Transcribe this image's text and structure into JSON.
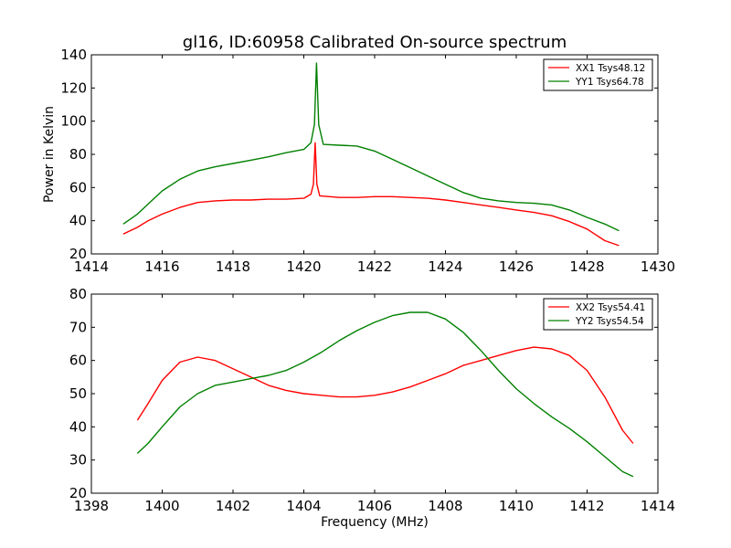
{
  "chart_data": [
    {
      "type": "line",
      "title": "gl16, ID:60958 Calibrated On-source spectrum",
      "xlabel": "",
      "ylabel": "Power in Kelvin",
      "xlim": [
        1414,
        1430
      ],
      "ylim": [
        20,
        140
      ],
      "xticks": [
        1414,
        1416,
        1418,
        1420,
        1422,
        1424,
        1426,
        1428,
        1430
      ],
      "yticks": [
        20,
        40,
        60,
        80,
        100,
        120,
        140
      ],
      "legend": "top-right",
      "grid": false,
      "series": [
        {
          "name": "XX1 Tsys48.12",
          "color": "#ff0000",
          "points": [
            [
              1414.9,
              32
            ],
            [
              1415.3,
              36
            ],
            [
              1415.6,
              40
            ],
            [
              1416.0,
              44
            ],
            [
              1416.5,
              48
            ],
            [
              1417.0,
              51
            ],
            [
              1417.5,
              52
            ],
            [
              1418.0,
              52.5
            ],
            [
              1418.5,
              52.5
            ],
            [
              1419.0,
              53
            ],
            [
              1419.5,
              53
            ],
            [
              1420.0,
              53.5
            ],
            [
              1420.2,
              56
            ],
            [
              1420.27,
              62
            ],
            [
              1420.32,
              87
            ],
            [
              1420.37,
              62
            ],
            [
              1420.45,
              55
            ],
            [
              1421.0,
              54
            ],
            [
              1421.5,
              54
            ],
            [
              1422.0,
              54.5
            ],
            [
              1422.5,
              54.5
            ],
            [
              1423.0,
              54
            ],
            [
              1423.5,
              53.5
            ],
            [
              1424.0,
              52.5
            ],
            [
              1424.5,
              51
            ],
            [
              1425.0,
              49.5
            ],
            [
              1425.5,
              48
            ],
            [
              1426.0,
              46.5
            ],
            [
              1426.5,
              45
            ],
            [
              1427.0,
              43
            ],
            [
              1427.5,
              39.5
            ],
            [
              1428.0,
              35
            ],
            [
              1428.5,
              28
            ],
            [
              1428.9,
              25
            ]
          ]
        },
        {
          "name": "YY1 Tsys64.78",
          "color": "#008000",
          "points": [
            [
              1414.9,
              38
            ],
            [
              1415.3,
              44
            ],
            [
              1415.6,
              50
            ],
            [
              1416.0,
              58
            ],
            [
              1416.5,
              65
            ],
            [
              1417.0,
              70
            ],
            [
              1417.5,
              72.5
            ],
            [
              1418.0,
              74.5
            ],
            [
              1418.5,
              76.5
            ],
            [
              1419.0,
              78.5
            ],
            [
              1419.5,
              81
            ],
            [
              1420.0,
              83
            ],
            [
              1420.2,
              87
            ],
            [
              1420.3,
              98
            ],
            [
              1420.36,
              135
            ],
            [
              1420.42,
              98
            ],
            [
              1420.55,
              86
            ],
            [
              1421.0,
              85.5
            ],
            [
              1421.5,
              85
            ],
            [
              1422.0,
              82
            ],
            [
              1422.5,
              77
            ],
            [
              1423.0,
              72
            ],
            [
              1423.5,
              67
            ],
            [
              1424.0,
              62
            ],
            [
              1424.5,
              57
            ],
            [
              1425.0,
              53.5
            ],
            [
              1425.5,
              52
            ],
            [
              1426.0,
              51
            ],
            [
              1426.5,
              50.5
            ],
            [
              1427.0,
              49.5
            ],
            [
              1427.5,
              46.5
            ],
            [
              1428.0,
              42
            ],
            [
              1428.5,
              38
            ],
            [
              1428.9,
              34
            ]
          ]
        }
      ]
    },
    {
      "type": "line",
      "title": "",
      "xlabel": "Frequency (MHz)",
      "ylabel": "",
      "xlim": [
        1398,
        1414
      ],
      "ylim": [
        20,
        80
      ],
      "xticks": [
        1398,
        1400,
        1402,
        1404,
        1406,
        1408,
        1410,
        1412,
        1414
      ],
      "yticks": [
        20,
        30,
        40,
        50,
        60,
        70,
        80
      ],
      "legend": "top-right",
      "grid": false,
      "series": [
        {
          "name": "XX2 Tsys54.41",
          "color": "#ff0000",
          "points": [
            [
              1399.3,
              42
            ],
            [
              1399.6,
              47
            ],
            [
              1400.0,
              54
            ],
            [
              1400.5,
              59.5
            ],
            [
              1401.0,
              61
            ],
            [
              1401.5,
              60
            ],
            [
              1402.0,
              57.5
            ],
            [
              1402.5,
              55
            ],
            [
              1403.0,
              52.5
            ],
            [
              1403.5,
              51
            ],
            [
              1404.0,
              50
            ],
            [
              1404.5,
              49.5
            ],
            [
              1405.0,
              49
            ],
            [
              1405.5,
              49
            ],
            [
              1406.0,
              49.5
            ],
            [
              1406.5,
              50.5
            ],
            [
              1407.0,
              52
            ],
            [
              1407.5,
              54
            ],
            [
              1408.0,
              56
            ],
            [
              1408.5,
              58.5
            ],
            [
              1409.0,
              60
            ],
            [
              1409.5,
              61.5
            ],
            [
              1410.0,
              63
            ],
            [
              1410.5,
              64
            ],
            [
              1411.0,
              63.5
            ],
            [
              1411.5,
              61.5
            ],
            [
              1412.0,
              57
            ],
            [
              1412.5,
              49
            ],
            [
              1413.0,
              39
            ],
            [
              1413.3,
              35
            ]
          ]
        },
        {
          "name": "YY2 Tsys54.54",
          "color": "#008000",
          "points": [
            [
              1399.3,
              32
            ],
            [
              1399.6,
              35
            ],
            [
              1400.0,
              40
            ],
            [
              1400.5,
              46
            ],
            [
              1401.0,
              50
            ],
            [
              1401.5,
              52.5
            ],
            [
              1402.0,
              53.5
            ],
            [
              1402.5,
              54.5
            ],
            [
              1403.0,
              55.5
            ],
            [
              1403.5,
              57
            ],
            [
              1404.0,
              59.5
            ],
            [
              1404.5,
              62.5
            ],
            [
              1405.0,
              66
            ],
            [
              1405.5,
              69
            ],
            [
              1406.0,
              71.5
            ],
            [
              1406.5,
              73.5
            ],
            [
              1407.0,
              74.5
            ],
            [
              1407.5,
              74.5
            ],
            [
              1408.0,
              72.5
            ],
            [
              1408.5,
              68.5
            ],
            [
              1409.0,
              63
            ],
            [
              1409.5,
              57
            ],
            [
              1410.0,
              51.5
            ],
            [
              1410.5,
              47
            ],
            [
              1411.0,
              43
            ],
            [
              1411.5,
              39.5
            ],
            [
              1412.0,
              35.5
            ],
            [
              1412.5,
              31
            ],
            [
              1413.0,
              26.5
            ],
            [
              1413.3,
              25
            ]
          ]
        }
      ]
    }
  ]
}
